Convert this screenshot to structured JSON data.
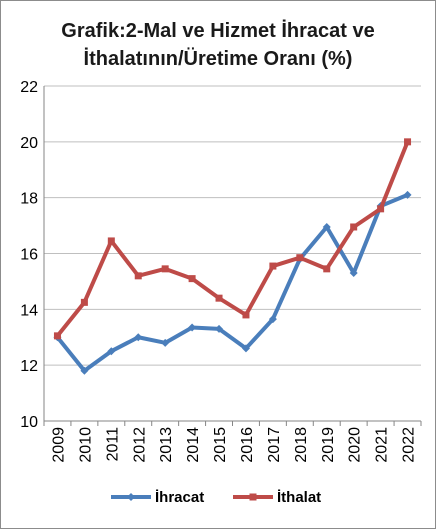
{
  "chart_data": {
    "type": "line",
    "title_line1": "Grafik:2-Mal ve Hizmet İhracat ve",
    "title_line2": "İthalatının/Üretime Oranı (%)",
    "categories": [
      "2009",
      "2010",
      "2011",
      "2012",
      "2013",
      "2014",
      "2015",
      "2016",
      "2017",
      "2018",
      "2019",
      "2020",
      "2021",
      "2022"
    ],
    "series": [
      {
        "name": "İhracat",
        "color": "#4a7ebb",
        "values": [
          13.0,
          11.8,
          12.5,
          13.0,
          12.8,
          13.35,
          13.3,
          12.6,
          13.65,
          15.8,
          16.95,
          15.3,
          17.7,
          18.1
        ]
      },
      {
        "name": "İthalat",
        "color": "#be4b48",
        "values": [
          13.05,
          14.25,
          16.45,
          15.2,
          15.45,
          15.1,
          14.4,
          13.8,
          15.55,
          15.85,
          15.45,
          16.95,
          17.6,
          20.0
        ]
      }
    ],
    "ylim": [
      10,
      22
    ],
    "yticks": [
      "10",
      "12",
      "14",
      "16",
      "18",
      "20",
      "22"
    ],
    "legend_position": "bottom",
    "grid": "horizontal"
  }
}
